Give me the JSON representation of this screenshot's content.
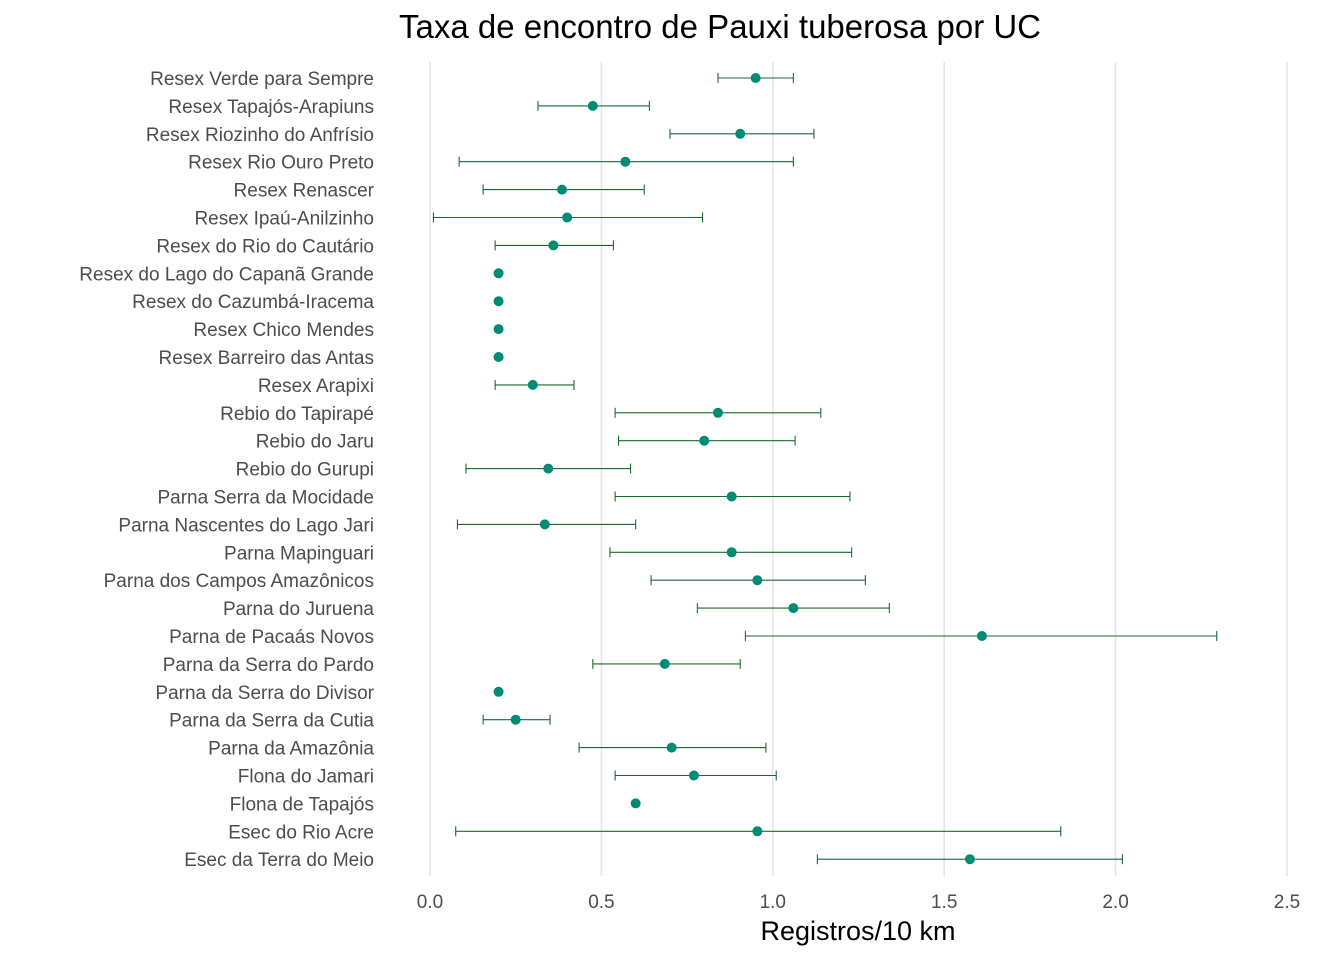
{
  "chart_data": {
    "type": "scatter",
    "title": "Taxa de encontro de Pauxi tuberosa por UC",
    "xlabel": "Registros/10 km",
    "ylabel": "",
    "xlim": [
      0,
      2.5
    ],
    "xticks": [
      "0.0",
      "0.5",
      "1.0",
      "1.5",
      "2.0",
      "2.5"
    ],
    "xtick_values": [
      0,
      0.5,
      1.0,
      1.5,
      2.0,
      2.5
    ],
    "grid": "vertical",
    "colors": {
      "point": "#008B74",
      "errorbar": "#1B6B2F",
      "grid": "#E5E5E5"
    },
    "categories": [
      "Resex Verde para Sempre",
      "Resex Tapajós-Arapiuns",
      "Resex Riozinho do Anfrísio",
      "Resex Rio Ouro Preto",
      "Resex Renascer",
      "Resex Ipaú-Anilzinho",
      "Resex do Rio do Cautário",
      "Resex do Lago do Capanã Grande",
      "Resex do Cazumbá-Iracema",
      "Resex Chico Mendes",
      "Resex Barreiro das Antas",
      "Resex Arapixi",
      "Rebio do Tapirapé",
      "Rebio do Jaru",
      "Rebio do Gurupi",
      "Parna Serra da Mocidade",
      "Parna Nascentes do Lago Jari",
      "Parna Mapinguari",
      "Parna dos Campos Amazônicos",
      "Parna do Juruena",
      "Parna de Pacaás Novos",
      "Parna da Serra do Pardo",
      "Parna da Serra do Divisor",
      "Parna da Serra da Cutia",
      "Parna da Amazônia",
      "Flona do Jamari",
      "Flona de Tapajós",
      "Esec do Rio Acre",
      "Esec da Terra do Meio"
    ],
    "values": [
      0.95,
      0.475,
      0.905,
      0.57,
      0.385,
      0.4,
      0.36,
      0.2,
      0.2,
      0.2,
      0.2,
      0.3,
      0.84,
      0.8,
      0.345,
      0.88,
      0.335,
      0.88,
      0.955,
      1.06,
      1.61,
      0.685,
      0.2,
      0.25,
      0.705,
      0.77,
      0.6,
      0.955,
      1.575
    ],
    "lower": [
      0.84,
      0.315,
      0.7,
      0.085,
      0.155,
      0.01,
      0.19,
      null,
      null,
      null,
      null,
      0.19,
      0.54,
      0.55,
      0.105,
      0.54,
      0.08,
      0.525,
      0.645,
      0.78,
      0.92,
      0.475,
      null,
      0.155,
      0.435,
      0.54,
      null,
      0.075,
      1.13
    ],
    "upper": [
      1.06,
      0.64,
      1.12,
      1.06,
      0.625,
      0.795,
      0.535,
      null,
      null,
      null,
      null,
      0.42,
      1.14,
      1.065,
      0.585,
      1.225,
      0.6,
      1.23,
      1.27,
      1.34,
      2.295,
      0.905,
      null,
      0.35,
      0.98,
      1.01,
      null,
      1.84,
      2.02
    ]
  }
}
